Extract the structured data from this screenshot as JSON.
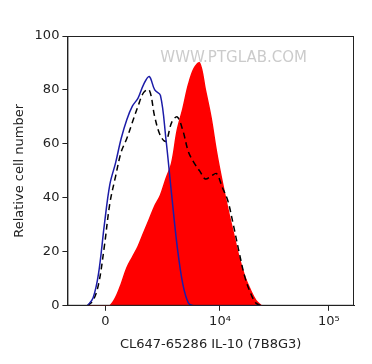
{
  "chart_data": {
    "type": "line",
    "x_label": "CL647-65286 IL-10 (7B8G3)",
    "y_label": "Relative cell number",
    "annotations": [
      "WWW.PTGLAB.COM"
    ],
    "x": [
      -700,
      -470,
      -260,
      -40,
      170,
      390,
      610,
      840,
      1080,
      1340,
      1610,
      1910,
      2230,
      2590,
      2970,
      3420,
      3890,
      4430,
      5030,
      5700,
      6440,
      7300,
      8230,
      9290,
      10480,
      11810,
      13300,
      15010,
      16900,
      19030,
      21440,
      24120
    ],
    "series": [
      {
        "color": "#1c1ca8",
        "line_style": "solid",
        "values": [
          0,
          3,
          12,
          30,
          45,
          53,
          62,
          69,
          74,
          77,
          82,
          85,
          80,
          78,
          62,
          41,
          22,
          8,
          1,
          0,
          0,
          0,
          0,
          0,
          0,
          0,
          0,
          0,
          0,
          0,
          0,
          0
        ]
      },
      {
        "color": "#000000",
        "line_style": "dashed",
        "values": [
          0,
          2,
          8,
          22,
          38,
          48,
          57,
          62,
          68,
          74,
          79,
          80,
          70,
          63,
          61,
          68,
          70,
          65,
          57,
          53,
          50,
          47,
          48,
          49,
          44,
          39,
          30,
          20,
          11,
          5,
          1,
          0
        ]
      },
      {
        "type": "area",
        "color": "#ff0000",
        "line_style": "solid",
        "values": [
          0,
          0,
          0,
          0,
          0,
          3,
          8,
          14,
          18,
          22,
          27,
          32,
          37,
          41,
          47,
          53,
          65,
          73,
          82,
          88,
          90,
          80,
          70,
          57,
          46,
          36,
          27,
          18,
          11,
          6,
          2,
          0
        ]
      }
    ],
    "xlim": [
      -1600,
      170000
    ],
    "xticks": [
      {
        "value": 0,
        "label": "0"
      },
      {
        "value": 10000,
        "label": "10⁴"
      },
      {
        "value": 100000,
        "label": "10⁵"
      }
    ],
    "ylim": [
      0,
      100
    ],
    "yticks": [
      0,
      20,
      40,
      60,
      80,
      100
    ],
    "grid": false
  }
}
